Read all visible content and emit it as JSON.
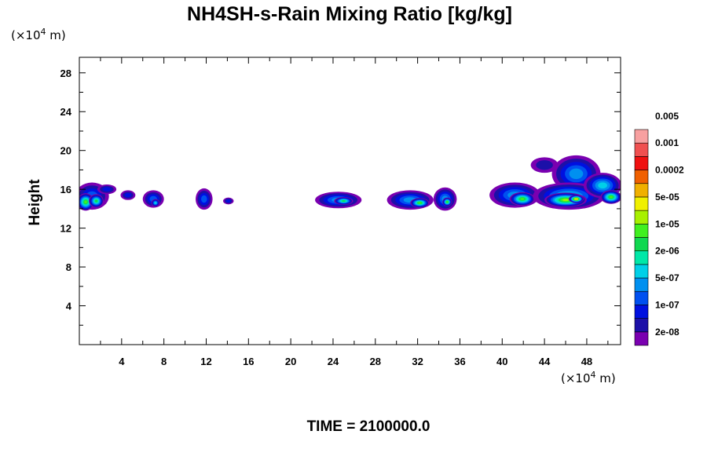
{
  "chart_data": {
    "type": "heatmap",
    "title": "NH4SH-s-Rain Mixing Ratio [kg/kg]",
    "ylabel": "Height",
    "x_unit": {
      "prefix": "(×10",
      "exp": "4",
      "suffix": " m)"
    },
    "y_unit": {
      "prefix": "(×10",
      "exp": "4",
      "suffix": " m)"
    },
    "time_label": "TIME = 2100000.0",
    "xlim": [
      0,
      51.2
    ],
    "ylim": [
      0,
      29.6
    ],
    "x_ticks": [
      4,
      8,
      12,
      16,
      20,
      24,
      28,
      32,
      36,
      40,
      44,
      48
    ],
    "y_ticks": [
      4,
      8,
      12,
      16,
      20,
      24,
      28
    ],
    "colorbar": {
      "colors": [
        "#7a00b0",
        "#1c10a8",
        "#0010e0",
        "#0050f0",
        "#0090f0",
        "#00d0e8",
        "#00e8a8",
        "#10d850",
        "#40f020",
        "#a8f000",
        "#f0f000",
        "#f0b000",
        "#f06000",
        "#f01010",
        "#f05050",
        "#f8a0a0"
      ],
      "labels": [
        "2e-08",
        "1e-07",
        "5e-07",
        "2e-06",
        "1e-05",
        "5e-05",
        "0.0002",
        "0.001",
        "0.005"
      ]
    },
    "blobs": [
      {
        "x": 1.2,
        "y": 15.3,
        "w": 1.6,
        "h": 1.4,
        "level": 3
      },
      {
        "x": 0.6,
        "y": 14.7,
        "w": 0.8,
        "h": 0.9,
        "level": 8
      },
      {
        "x": 1.6,
        "y": 14.8,
        "w": 0.7,
        "h": 0.7,
        "level": 7
      },
      {
        "x": 2.6,
        "y": 16.0,
        "w": 0.9,
        "h": 0.5,
        "level": 2
      },
      {
        "x": 4.6,
        "y": 15.4,
        "w": 0.7,
        "h": 0.5,
        "level": 2
      },
      {
        "x": 7.0,
        "y": 15.0,
        "w": 1.0,
        "h": 0.9,
        "level": 3
      },
      {
        "x": 7.2,
        "y": 14.6,
        "w": 0.4,
        "h": 0.4,
        "level": 5
      },
      {
        "x": 11.8,
        "y": 15.0,
        "w": 0.8,
        "h": 1.1,
        "level": 3
      },
      {
        "x": 14.1,
        "y": 14.8,
        "w": 0.5,
        "h": 0.35,
        "level": 2
      },
      {
        "x": 24.5,
        "y": 14.9,
        "w": 2.2,
        "h": 0.85,
        "level": 4
      },
      {
        "x": 25.0,
        "y": 14.8,
        "w": 0.9,
        "h": 0.4,
        "level": 7
      },
      {
        "x": 31.3,
        "y": 14.9,
        "w": 2.2,
        "h": 1.0,
        "level": 4
      },
      {
        "x": 32.2,
        "y": 14.6,
        "w": 0.9,
        "h": 0.5,
        "level": 8
      },
      {
        "x": 34.6,
        "y": 15.0,
        "w": 1.1,
        "h": 1.2,
        "level": 4
      },
      {
        "x": 34.8,
        "y": 14.7,
        "w": 0.45,
        "h": 0.45,
        "level": 8
      },
      {
        "x": 41.2,
        "y": 15.4,
        "w": 2.4,
        "h": 1.3,
        "level": 4
      },
      {
        "x": 41.9,
        "y": 15.0,
        "w": 1.2,
        "h": 0.7,
        "level": 8
      },
      {
        "x": 44.0,
        "y": 18.5,
        "w": 1.3,
        "h": 0.8,
        "level": 1
      },
      {
        "x": 47.0,
        "y": 17.6,
        "w": 2.3,
        "h": 1.9,
        "level": 4
      },
      {
        "x": 46.3,
        "y": 15.3,
        "w": 3.4,
        "h": 1.4,
        "level": 5
      },
      {
        "x": 46.0,
        "y": 14.9,
        "w": 2.0,
        "h": 0.75,
        "level": 9
      },
      {
        "x": 47.0,
        "y": 15.0,
        "w": 0.7,
        "h": 0.4,
        "level": 11
      },
      {
        "x": 49.5,
        "y": 16.4,
        "w": 1.8,
        "h": 1.3,
        "level": 5
      },
      {
        "x": 50.3,
        "y": 15.2,
        "w": 1.0,
        "h": 0.7,
        "level": 8
      }
    ]
  }
}
